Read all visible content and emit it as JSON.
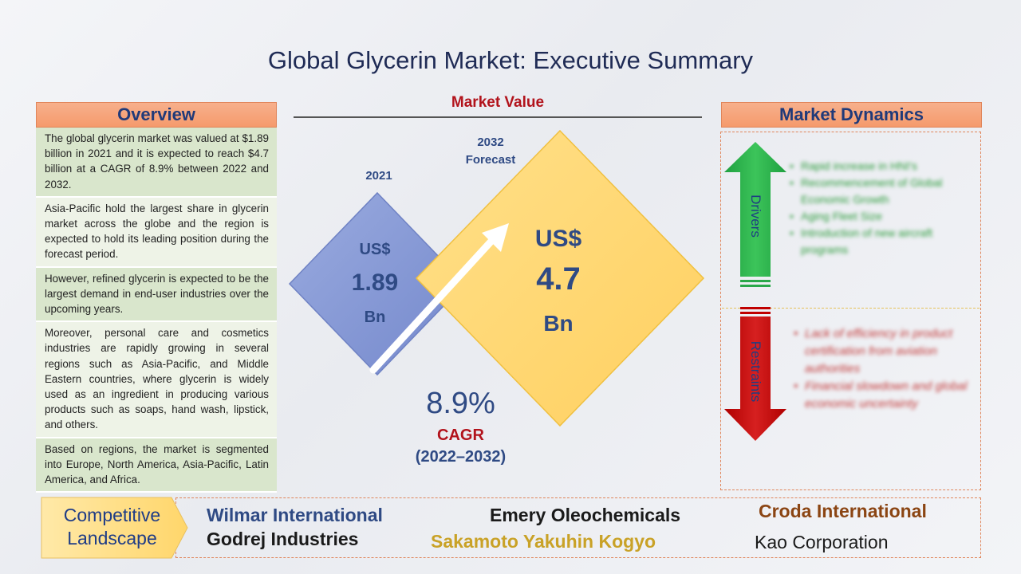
{
  "title": "Global Glycerin Market: Executive Summary",
  "overview": {
    "header": "Overview",
    "items": [
      "The global glycerin market was valued at $1.89 billion in 2021 and it is expected to reach $4.7 billion at a CAGR of 8.9% between 2022 and 2032.",
      "Asia-Pacific hold the largest share in glycerin market across the globe and the region is expected to hold its leading position during the forecast period.",
      "However, refined glycerin is expected to be the largest demand in end-user industries over the upcoming years.",
      "Moreover, personal care and cosmetics industries are rapidly growing in several regions such as Asia-Pacific, and Middle Eastern countries, where glycerin is widely used as an ingredient in producing various products such as soaps, hand wash, lipstick, and others.",
      "Based on regions, the market is segmented into Europe, North America, Asia-Pacific, Latin America, and Africa."
    ]
  },
  "market_value": {
    "title": "Market Value",
    "y2021": {
      "label": "2021",
      "currency": "US$",
      "value": "1.89",
      "unit": "Bn"
    },
    "y2032": {
      "label_line1": "2032",
      "label_line2": "Forecast",
      "currency": "US$",
      "value": "4.7",
      "unit": "Bn"
    },
    "cagr_value": "8.9%",
    "cagr_label": "CAGR",
    "cagr_years": "(2022–2032)"
  },
  "market_dynamics": {
    "header": "Market Dynamics",
    "drivers_label": "Drivers",
    "restraints_label": "Restraints",
    "drivers": [
      "Rapid increase in HNI's",
      "Recommencement of Global Economic Growth",
      "Aging Fleet Size",
      "Introduction of new aircraft programs"
    ],
    "restraints": [
      "Lack of efficiency in product certification from aviation authorities",
      "Financial slowdown and global economic uncertainty"
    ]
  },
  "competitive_landscape": {
    "label_line1": "Competitive",
    "label_line2": "Landscape",
    "companies": [
      {
        "name": "Wilmar International",
        "color": "#2f4a84"
      },
      {
        "name": "Godrej Industries",
        "color": "#1a1a1a"
      },
      {
        "name": "Emery Oleochemicals",
        "color": "#1a1a1a"
      },
      {
        "name": "Sakamoto Yakuhin Kogyo",
        "color": "#c9a227"
      },
      {
        "name": "Croda International",
        "color": "#8b4513"
      },
      {
        "name": "Kao Corporation",
        "color": "#1a1a1a"
      }
    ]
  },
  "colors": {
    "accent_orange": "#f59a6c",
    "dark_blue": "#2f4a84",
    "red": "#b2131c",
    "driver_green": "#2a9a3a",
    "restraint_red": "#c00000",
    "diamond_blue": "#8ea1d8",
    "diamond_yellow": "#ffd873"
  }
}
